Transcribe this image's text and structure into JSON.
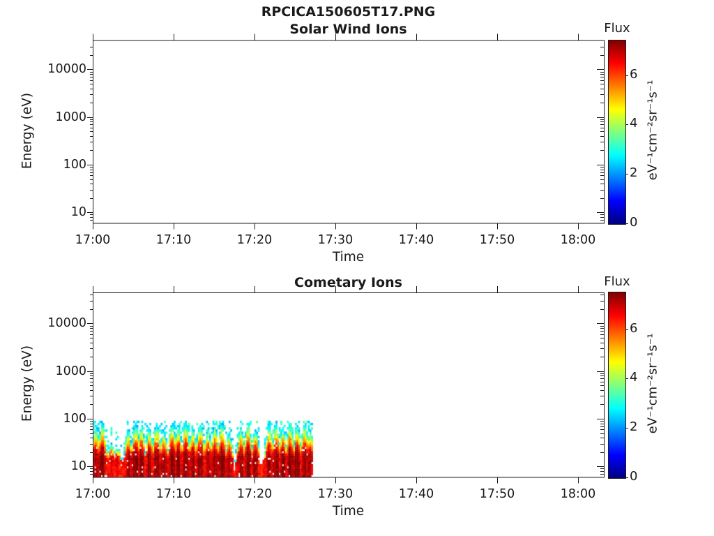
{
  "figure": {
    "title": "RPCICA150605T17.PNG",
    "text_color": "#1a1a1a",
    "background_color": "#ffffff"
  },
  "panels": [
    {
      "title": "Solar Wind Ions",
      "xlabel": "Time",
      "ylabel": "Energy (eV)",
      "x_tick_labels": [
        "17:00",
        "17:10",
        "17:20",
        "17:30",
        "17:40",
        "17:50",
        "18:00"
      ],
      "y_tick_labels": [
        "10",
        "100",
        "1000",
        "10000"
      ],
      "colorbar": {
        "title": "Flux",
        "tick_labels": [
          "0",
          "2",
          "4",
          "6"
        ],
        "units": "eV⁻¹cm⁻²sr⁻¹s⁻¹"
      }
    },
    {
      "title": "Cometary Ions",
      "xlabel": "Time",
      "ylabel": "Energy (eV)",
      "x_tick_labels": [
        "17:00",
        "17:10",
        "17:20",
        "17:30",
        "17:40",
        "17:50",
        "18:00"
      ],
      "y_tick_labels": [
        "10",
        "100",
        "1000",
        "10000"
      ],
      "colorbar": {
        "title": "Flux",
        "tick_labels": [
          "0",
          "2",
          "4",
          "6"
        ],
        "units": "eV⁻¹cm⁻²sr⁻¹s⁻¹"
      }
    }
  ],
  "chart_data": [
    {
      "type": "heatmap",
      "title": "Solar Wind Ions",
      "xlabel": "Time",
      "ylabel": "Energy (eV)",
      "x_range": [
        "17:00",
        "18:03"
      ],
      "x_major_tick_minutes": [
        0,
        10,
        20,
        30,
        40,
        50,
        60
      ],
      "y_scale": "log",
      "y_range_ev": [
        6,
        42000
      ],
      "grid": false,
      "colorbar": {
        "label": "Flux",
        "units": "eV⁻¹cm⁻²sr⁻¹s⁻¹",
        "range": [
          0,
          7.4
        ],
        "ticks": [
          0,
          2,
          4,
          6
        ],
        "colormap": "jet"
      },
      "values": [],
      "note": "panel is empty - no flux measured/plotted in this interval"
    },
    {
      "type": "heatmap",
      "title": "Cometary Ions",
      "xlabel": "Time",
      "ylabel": "Energy (eV)",
      "x_range": [
        "17:00",
        "18:03"
      ],
      "x_major_tick_minutes": [
        0,
        10,
        20,
        30,
        40,
        50,
        60
      ],
      "y_scale": "log",
      "y_range_ev": [
        6,
        42000
      ],
      "grid": false,
      "colorbar": {
        "label": "Flux",
        "units": "eV⁻¹cm⁻²sr⁻¹s⁻¹",
        "range": [
          0,
          7.4
        ],
        "ticks": [
          0,
          2,
          4,
          6
        ],
        "colormap": "jet"
      },
      "data_time_start": "17:00",
      "data_time_end": "17:27",
      "energy_band_ev": [
        6,
        90
      ],
      "bottom_band_ev": [
        6,
        10
      ],
      "core_energy_ev": [
        8,
        30
      ],
      "peak_flux_log10": 7.3,
      "edge_flux_log10": 2.5,
      "peaks_t_min_and_top_ev": [
        [
          0.4,
          70
        ],
        [
          1.2,
          82
        ],
        [
          2.3,
          38
        ],
        [
          3.1,
          30
        ],
        [
          4.4,
          55
        ],
        [
          5.3,
          80
        ],
        [
          6.0,
          72
        ],
        [
          7.0,
          62
        ],
        [
          7.9,
          80
        ],
        [
          8.8,
          58
        ],
        [
          9.8,
          84
        ],
        [
          10.6,
          72
        ],
        [
          11.5,
          80
        ],
        [
          12.4,
          66
        ],
        [
          13.3,
          80
        ],
        [
          14.2,
          62
        ],
        [
          15.1,
          76
        ],
        [
          16.0,
          80
        ],
        [
          16.9,
          52
        ],
        [
          18.3,
          70
        ],
        [
          19.2,
          82
        ],
        [
          20.1,
          62
        ],
        [
          21.8,
          76
        ],
        [
          22.7,
          84
        ],
        [
          23.5,
          62
        ],
        [
          24.4,
          80
        ],
        [
          25.3,
          72
        ],
        [
          26.2,
          84
        ],
        [
          26.9,
          60
        ]
      ],
      "low_activity_gaps_min": [
        [
          2.0,
          3.6
        ],
        [
          17.3,
          18.0
        ],
        [
          20.5,
          21.4
        ]
      ],
      "note": "spiky low-energy cometary ion flux bursts, ~12 s cadence columns"
    }
  ]
}
